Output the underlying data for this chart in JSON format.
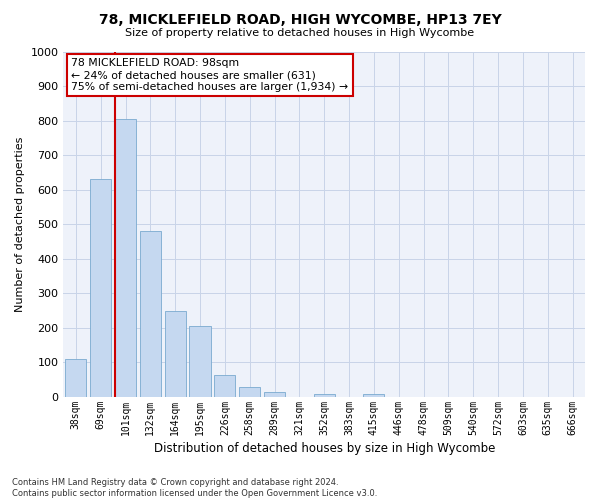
{
  "title": "78, MICKLEFIELD ROAD, HIGH WYCOMBE, HP13 7EY",
  "subtitle": "Size of property relative to detached houses in High Wycombe",
  "xlabel": "Distribution of detached houses by size in High Wycombe",
  "ylabel": "Number of detached properties",
  "bar_labels": [
    "38sqm",
    "69sqm",
    "101sqm",
    "132sqm",
    "164sqm",
    "195sqm",
    "226sqm",
    "258sqm",
    "289sqm",
    "321sqm",
    "352sqm",
    "383sqm",
    "415sqm",
    "446sqm",
    "478sqm",
    "509sqm",
    "540sqm",
    "572sqm",
    "603sqm",
    "635sqm",
    "666sqm"
  ],
  "bar_values": [
    110,
    630,
    805,
    480,
    250,
    205,
    63,
    28,
    15,
    0,
    10,
    0,
    8,
    0,
    0,
    0,
    0,
    0,
    0,
    0,
    0
  ],
  "bar_color": "#c5d8f0",
  "bar_edge_color": "#7aaad0",
  "ylim": [
    0,
    1000
  ],
  "yticks": [
    0,
    100,
    200,
    300,
    400,
    500,
    600,
    700,
    800,
    900,
    1000
  ],
  "red_line_index": 2,
  "bar_width": 0.85,
  "annotation_title": "78 MICKLEFIELD ROAD: 98sqm",
  "annotation_line1": "← 24% of detached houses are smaller (631)",
  "annotation_line2": "75% of semi-detached houses are larger (1,934) →",
  "annotation_box_color": "#ffffff",
  "annotation_border_color": "#cc0000",
  "red_line_color": "#cc0000",
  "grid_color": "#c8d4e8",
  "bg_color": "#eef2fa",
  "footnote1": "Contains HM Land Registry data © Crown copyright and database right 2024.",
  "footnote2": "Contains public sector information licensed under the Open Government Licence v3.0."
}
